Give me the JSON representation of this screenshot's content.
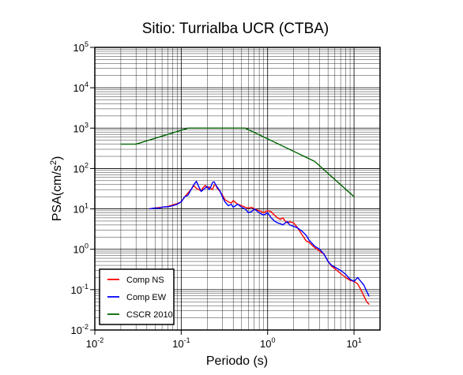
{
  "chart_data": {
    "type": "line",
    "title": "Sitio: Turrialba UCR (CTBA)",
    "xlabel": "Periodo (s)",
    "ylabel": "PSA(cm/s",
    "ylabel_sup": "2",
    "ylabel_close": ")",
    "x_scale": "log",
    "y_scale": "log",
    "xlim": [
      0.01,
      20
    ],
    "ylim": [
      0.01,
      100000
    ],
    "grid": true,
    "legend_position": "bottom-left",
    "x_ticks": [
      {
        "value": 0.01,
        "base": "10",
        "exp": "-2"
      },
      {
        "value": 0.1,
        "base": "10",
        "exp": "-1"
      },
      {
        "value": 1,
        "base": "10",
        "exp": "0"
      },
      {
        "value": 10,
        "base": "10",
        "exp": "1"
      }
    ],
    "y_ticks": [
      {
        "value": 0.01,
        "base": "10",
        "exp": "-2"
      },
      {
        "value": 0.1,
        "base": "10",
        "exp": "-1"
      },
      {
        "value": 1,
        "base": "10",
        "exp": "0"
      },
      {
        "value": 10,
        "base": "10",
        "exp": "1"
      },
      {
        "value": 100,
        "base": "10",
        "exp": "2"
      },
      {
        "value": 1000,
        "base": "10",
        "exp": "3"
      },
      {
        "value": 10000,
        "base": "10",
        "exp": "4"
      },
      {
        "value": 100000,
        "base": "10",
        "exp": "5"
      }
    ],
    "series": [
      {
        "name": "Comp NS",
        "color": "#ff0000",
        "x": [
          0.043,
          0.05,
          0.055,
          0.06,
          0.065,
          0.07,
          0.08,
          0.09,
          0.1,
          0.11,
          0.12,
          0.13,
          0.14,
          0.15,
          0.16,
          0.17,
          0.18,
          0.19,
          0.2,
          0.21,
          0.22,
          0.23,
          0.24,
          0.25,
          0.26,
          0.28,
          0.3,
          0.32,
          0.35,
          0.38,
          0.4,
          0.45,
          0.5,
          0.55,
          0.6,
          0.65,
          0.7,
          0.8,
          0.9,
          1.0,
          1.1,
          1.2,
          1.3,
          1.4,
          1.5,
          1.6,
          1.7,
          1.8,
          2.0,
          2.2,
          2.5,
          2.8,
          3.0,
          3.5,
          4.0,
          4.5,
          5.0,
          5.5,
          6.0,
          7.0,
          8.0,
          9.0,
          10.0,
          11.0,
          12.0,
          13.0,
          14.0,
          15.0
        ],
        "y": [
          10,
          10.5,
          10.8,
          11,
          11.2,
          11.5,
          12.5,
          13.5,
          15,
          20,
          25,
          30,
          38,
          32,
          30,
          28,
          34,
          38,
          33,
          35,
          32,
          30,
          38,
          40,
          33,
          27,
          22,
          17,
          15,
          14,
          16,
          13,
          12,
          11,
          10.5,
          11,
          10,
          9,
          8,
          9,
          8.5,
          7,
          6,
          5.5,
          6,
          5,
          4.5,
          4.8,
          4.5,
          3.5,
          2.3,
          1.6,
          1.5,
          1.1,
          0.9,
          0.75,
          0.5,
          0.38,
          0.33,
          0.25,
          0.2,
          0.17,
          0.16,
          0.14,
          0.1,
          0.07,
          0.05,
          0.043
        ]
      },
      {
        "name": "Comp EW",
        "color": "#0000ff",
        "x": [
          0.043,
          0.05,
          0.055,
          0.06,
          0.065,
          0.07,
          0.08,
          0.09,
          0.1,
          0.11,
          0.12,
          0.13,
          0.14,
          0.15,
          0.16,
          0.17,
          0.18,
          0.19,
          0.2,
          0.21,
          0.22,
          0.23,
          0.24,
          0.25,
          0.26,
          0.28,
          0.3,
          0.32,
          0.35,
          0.38,
          0.4,
          0.45,
          0.5,
          0.55,
          0.6,
          0.65,
          0.7,
          0.8,
          0.9,
          1.0,
          1.1,
          1.2,
          1.3,
          1.4,
          1.5,
          1.6,
          1.7,
          1.8,
          2.0,
          2.2,
          2.5,
          2.8,
          3.0,
          3.5,
          4.0,
          4.5,
          5.0,
          5.5,
          6.0,
          7.0,
          8.0,
          9.0,
          10.0,
          11.0,
          12.0,
          13.0,
          14.0,
          15.0
        ],
        "y": [
          10,
          10.5,
          10.3,
          11,
          11.3,
          11.2,
          12,
          13,
          15,
          20,
          22,
          30,
          40,
          48,
          35,
          27,
          30,
          33,
          36,
          30,
          35,
          45,
          47,
          40,
          35,
          28,
          20,
          15,
          12,
          13,
          11,
          13,
          11,
          10,
          8,
          8.5,
          10,
          8,
          7,
          8,
          6,
          5,
          4.5,
          4.3,
          4,
          4.5,
          4.8,
          4,
          3.7,
          3.4,
          2.8,
          2.2,
          1.7,
          1.2,
          1.0,
          0.75,
          0.5,
          0.4,
          0.36,
          0.3,
          0.24,
          0.18,
          0.16,
          0.2,
          0.16,
          0.13,
          0.09,
          0.068
        ]
      },
      {
        "name": "CSCR 2010",
        "color": "#006400",
        "x": [
          0.02,
          0.03,
          0.12,
          0.55,
          3.5,
          10.0
        ],
        "y": [
          400,
          400,
          1000,
          1000,
          150,
          20
        ]
      }
    ]
  }
}
